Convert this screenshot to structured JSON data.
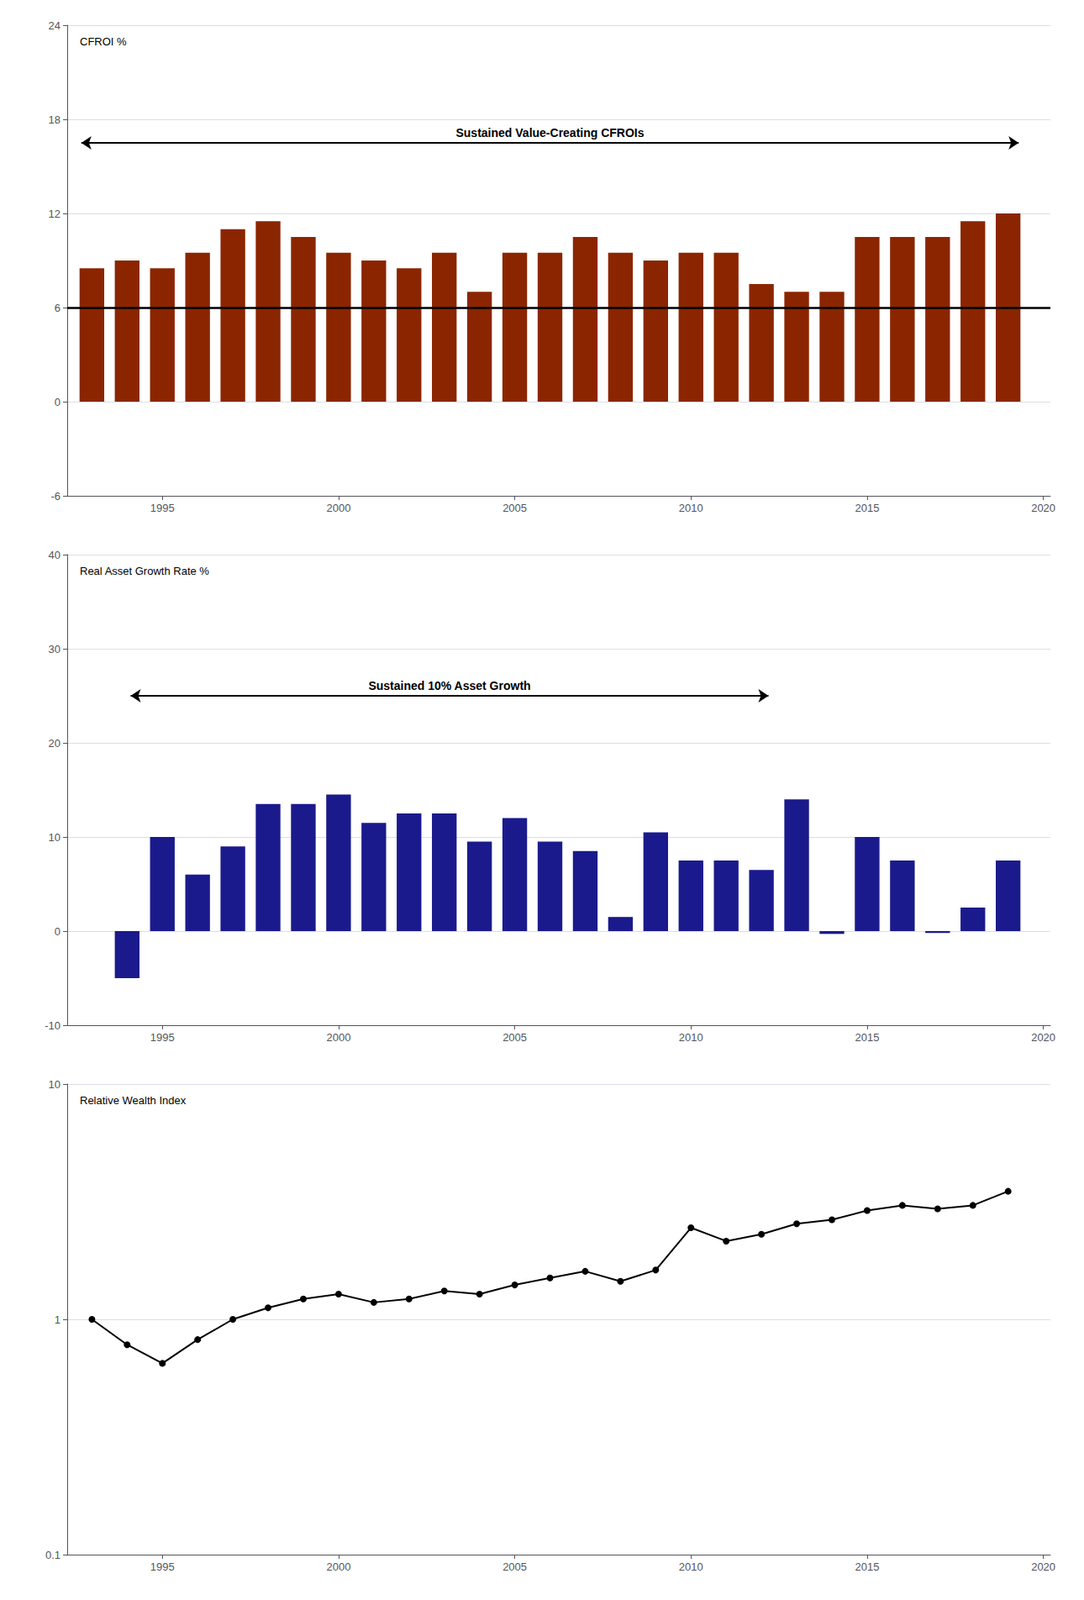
{
  "chart_data": [
    {
      "type": "bar",
      "ylabel": "CFROI %",
      "x": [
        1993,
        1994,
        1995,
        1996,
        1997,
        1998,
        1999,
        2000,
        2001,
        2002,
        2003,
        2004,
        2005,
        2006,
        2007,
        2008,
        2009,
        2010,
        2011,
        2012,
        2013,
        2014,
        2015,
        2016,
        2017,
        2018,
        2019
      ],
      "values": [
        8.5,
        9.0,
        8.5,
        9.5,
        11.0,
        11.5,
        10.5,
        9.5,
        9.0,
        8.5,
        9.5,
        7.0,
        9.5,
        9.5,
        10.5,
        9.5,
        9.0,
        9.5,
        9.5,
        7.5,
        7.0,
        7.0,
        10.5,
        10.5,
        10.5,
        11.5,
        12.0
      ],
      "color": "#8B2500",
      "xlim": [
        1992.3,
        2020.2
      ],
      "xticks": [
        1995,
        2000,
        2005,
        2010,
        2015,
        2020
      ],
      "ylim": [
        -6,
        24
      ],
      "yticks": [
        -6,
        0,
        6,
        12,
        18,
        24
      ],
      "grid": true,
      "reference_line": 6.0,
      "annotations": [
        {
          "text": "Sustained Value-Creating CFROIs",
          "x": [
            1992.7,
            2019.3
          ],
          "y": 16.5
        }
      ]
    },
    {
      "type": "bar",
      "ylabel": "Real Asset Growth Rate %",
      "x": [
        1993,
        1994,
        1995,
        1996,
        1997,
        1998,
        1999,
        2000,
        2001,
        2002,
        2003,
        2004,
        2005,
        2006,
        2007,
        2008,
        2009,
        2010,
        2011,
        2012,
        2013,
        2014,
        2015,
        2016,
        2017,
        2018,
        2019
      ],
      "values": [
        0.0,
        -5.0,
        10.0,
        6.0,
        9.0,
        13.5,
        13.5,
        14.5,
        11.5,
        12.5,
        12.5,
        9.5,
        12.0,
        9.5,
        8.5,
        1.5,
        10.5,
        7.5,
        7.5,
        6.5,
        14.0,
        -0.3,
        10.0,
        7.5,
        -0.2,
        2.5,
        7.5
      ],
      "color": "#1a1a8c",
      "xlim": [
        1992.3,
        2020.2
      ],
      "xticks": [
        1995,
        2000,
        2005,
        2010,
        2015,
        2020
      ],
      "ylim": [
        -10,
        40
      ],
      "yticks": [
        -10,
        0,
        10,
        20,
        30,
        40
      ],
      "grid": true,
      "annotations": [
        {
          "text": "Sustained 10% Asset Growth",
          "x": [
            1994.1,
            2012.2
          ],
          "y": 25
        }
      ]
    },
    {
      "type": "line",
      "ylabel": "Relative Wealth Index",
      "x": [
        1993,
        1994,
        1995,
        1996,
        1997,
        1998,
        1999,
        2000,
        2001,
        2002,
        2003,
        2004,
        2005,
        2006,
        2007,
        2008,
        2009,
        2010,
        2011,
        2012,
        2013,
        2014,
        2015,
        2016,
        2017,
        2018,
        2019
      ],
      "values": [
        1.0,
        0.78,
        0.65,
        0.82,
        1.0,
        1.12,
        1.22,
        1.28,
        1.18,
        1.22,
        1.32,
        1.28,
        1.4,
        1.5,
        1.6,
        1.45,
        1.62,
        2.45,
        2.15,
        2.3,
        2.55,
        2.65,
        2.9,
        3.05,
        2.95,
        3.05,
        3.5
      ],
      "color": "#000000",
      "marker": "circle",
      "log": "y",
      "xlim": [
        1992.3,
        2020.2
      ],
      "xticks": [
        1995,
        2000,
        2005,
        2010,
        2015,
        2020
      ],
      "ylim": [
        0.1,
        10
      ],
      "yticks": [
        0.1,
        1,
        10
      ],
      "grid": true
    }
  ]
}
